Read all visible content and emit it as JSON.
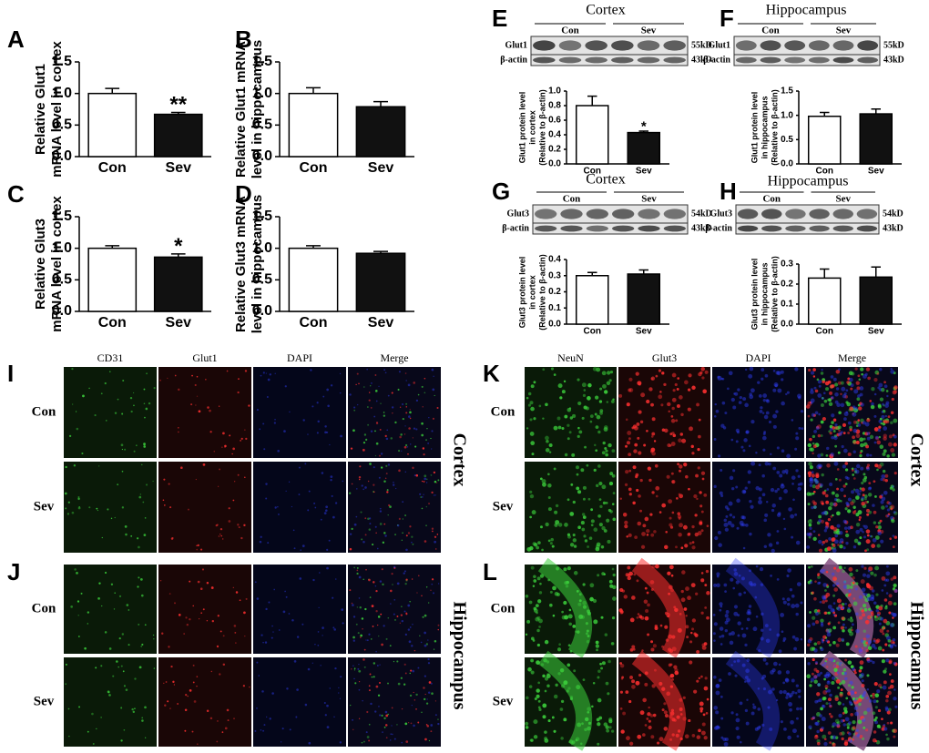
{
  "chart_data": [
    {
      "type": "bar",
      "panel": "A",
      "ylabel": [
        "Relative Glut1",
        "mRNA level in cortex"
      ],
      "categories": [
        "Con",
        "Sev"
      ],
      "values": [
        1.0,
        0.67
      ],
      "errors": [
        0.08,
        0.03
      ],
      "colors": [
        "#ffffff",
        "#111111"
      ],
      "significance": [
        null,
        "**"
      ],
      "ylim": [
        0,
        1.5
      ],
      "yticks": [
        {
          "value": 0,
          "label": "0.0"
        },
        {
          "value": 0.5,
          "label": "0.5"
        },
        {
          "value": 1,
          "label": "1.0"
        },
        {
          "value": 1.5,
          "label": "1.5"
        }
      ]
    },
    {
      "type": "bar",
      "panel": "B",
      "ylabel": [
        "Relative Glut1 mRNA",
        "level in hippocampus"
      ],
      "categories": [
        "Con",
        "Sev"
      ],
      "values": [
        1.0,
        0.79
      ],
      "errors": [
        0.09,
        0.08
      ],
      "colors": [
        "#ffffff",
        "#111111"
      ],
      "ylim": [
        0,
        1.5
      ],
      "yticks": [
        {
          "value": 0,
          "label": "0.0"
        },
        {
          "value": 0.5,
          "label": "0.5"
        },
        {
          "value": 1,
          "label": "1.0"
        },
        {
          "value": 1.5,
          "label": "1.5"
        }
      ]
    },
    {
      "type": "bar",
      "panel": "C",
      "ylabel": [
        "Relative Glut3",
        "mRNA level in cortex"
      ],
      "categories": [
        "Con",
        "Sev"
      ],
      "values": [
        1.0,
        0.86
      ],
      "errors": [
        0.04,
        0.05
      ],
      "colors": [
        "#ffffff",
        "#111111"
      ],
      "significance": [
        null,
        "*"
      ],
      "ylim": [
        0,
        1.5
      ],
      "yticks": [
        {
          "value": 0,
          "label": "0.0"
        },
        {
          "value": 0.5,
          "label": "0.5"
        },
        {
          "value": 1,
          "label": "1.0"
        },
        {
          "value": 1.5,
          "label": "1.5"
        }
      ]
    },
    {
      "type": "bar",
      "panel": "D",
      "ylabel": [
        "Relative Glut3 mRNA",
        "level in hippocampus"
      ],
      "categories": [
        "Con",
        "Sev"
      ],
      "values": [
        1.0,
        0.92
      ],
      "errors": [
        0.04,
        0.03
      ],
      "colors": [
        "#ffffff",
        "#111111"
      ],
      "ylim": [
        0,
        1.5
      ],
      "yticks": [
        {
          "value": 0,
          "label": "0.0"
        },
        {
          "value": 0.5,
          "label": "0.5"
        },
        {
          "value": 1,
          "label": "1.0"
        },
        {
          "value": 1.5,
          "label": "1.5"
        }
      ]
    },
    {
      "type": "bar",
      "panel": "E",
      "ylabel": [
        "Glut1 protein level",
        "in cortex",
        "(Relative to β-actin)"
      ],
      "categories": [
        "Con",
        "Sev"
      ],
      "values": [
        0.8,
        0.43
      ],
      "errors": [
        0.13,
        0.02
      ],
      "colors": [
        "#ffffff",
        "#111111"
      ],
      "significance": [
        null,
        "*"
      ],
      "ylim": [
        0,
        1.0
      ],
      "yticks": [
        {
          "value": 0,
          "label": "0.0"
        },
        {
          "value": 0.2,
          "label": "0.2"
        },
        {
          "value": 0.4,
          "label": "0.4"
        },
        {
          "value": 0.6,
          "label": "0.6"
        },
        {
          "value": 0.8,
          "label": "0.8"
        },
        {
          "value": 1,
          "label": "1.0"
        }
      ]
    },
    {
      "type": "bar",
      "panel": "F",
      "ylabel": [
        "Glut1 protein level",
        "in hippocampus",
        "(Relative to β-actin)"
      ],
      "categories": [
        "Con",
        "Sev"
      ],
      "values": [
        0.98,
        1.03
      ],
      "errors": [
        0.08,
        0.1
      ],
      "colors": [
        "#ffffff",
        "#111111"
      ],
      "ylim": [
        0,
        1.5
      ],
      "yticks": [
        {
          "value": 0,
          "label": "0.0"
        },
        {
          "value": 0.5,
          "label": "0.5"
        },
        {
          "value": 1,
          "label": "1.0"
        },
        {
          "value": 1.5,
          "label": "1.5"
        }
      ]
    },
    {
      "type": "bar",
      "panel": "G",
      "ylabel": [
        "Glut3 protein level",
        "in cortex",
        "(Relative to β-actin)"
      ],
      "categories": [
        "Con",
        "Sev"
      ],
      "values": [
        0.3,
        0.31
      ],
      "errors": [
        0.02,
        0.025
      ],
      "colors": [
        "#ffffff",
        "#111111"
      ],
      "ylim": [
        0,
        0.4
      ],
      "yticks": [
        {
          "value": 0,
          "label": "0.0"
        },
        {
          "value": 0.1,
          "label": "0.1"
        },
        {
          "value": 0.2,
          "label": "0.2"
        },
        {
          "value": 0.3,
          "label": "0.3"
        },
        {
          "value": 0.4,
          "label": "0.4"
        }
      ]
    },
    {
      "type": "bar",
      "panel": "H",
      "ylabel": [
        "Glut3 protein level",
        "in hippocampus",
        "(Relative to β-actin)"
      ],
      "categories": [
        "Con",
        "Sev"
      ],
      "values": [
        0.23,
        0.235
      ],
      "errors": [
        0.045,
        0.05
      ],
      "colors": [
        "#ffffff",
        "#111111"
      ],
      "ylim": [
        0,
        0.3
      ],
      "yticks": [
        {
          "value": 0,
          "label": "0.0"
        },
        {
          "value": 0.1,
          "label": "0.1"
        },
        {
          "value": 0.2,
          "label": "0.2"
        },
        {
          "value": 0.3,
          "label": "0.3"
        }
      ]
    }
  ],
  "blots": [
    {
      "title": "Cortex",
      "groups": [
        "Con",
        "Sev"
      ],
      "rows": [
        {
          "label": "Glut1",
          "size": "55kD"
        },
        {
          "label": "β-actin",
          "size": "43kD"
        }
      ]
    },
    {
      "title": "Hippocampus",
      "groups": [
        "Con",
        "Sev"
      ],
      "rows": [
        {
          "label": "Glut1",
          "size": "55kD"
        },
        {
          "label": "β-actin",
          "size": "43kD"
        }
      ]
    },
    {
      "title": "Cortex",
      "groups": [
        "Con",
        "Sev"
      ],
      "rows": [
        {
          "label": "Glut3",
          "size": "54kD"
        },
        {
          "label": "β-actin",
          "size": "43kD"
        }
      ]
    },
    {
      "title": "Hippocampus",
      "groups": [
        "Con",
        "Sev"
      ],
      "rows": [
        {
          "label": "Glut3",
          "size": "54kD"
        },
        {
          "label": "β-actin",
          "size": "43kD"
        }
      ]
    }
  ],
  "images": [
    {
      "panel": "I",
      "columns": [
        "CD31",
        "Glut1",
        "DAPI",
        "Merge"
      ],
      "rows": [
        "Con",
        "Sev"
      ],
      "region": "Cortex"
    },
    {
      "panel": "J",
      "rows": [
        "Con",
        "Sev"
      ],
      "region": "Hippocampus"
    },
    {
      "panel": "K",
      "columns": [
        "NeuN",
        "Glut3",
        "DAPI",
        "Merge"
      ],
      "rows": [
        "Con",
        "Sev"
      ],
      "region": "Cortex"
    },
    {
      "panel": "L",
      "rows": [
        "Con",
        "Sev"
      ],
      "region": "Hippocampus"
    }
  ]
}
